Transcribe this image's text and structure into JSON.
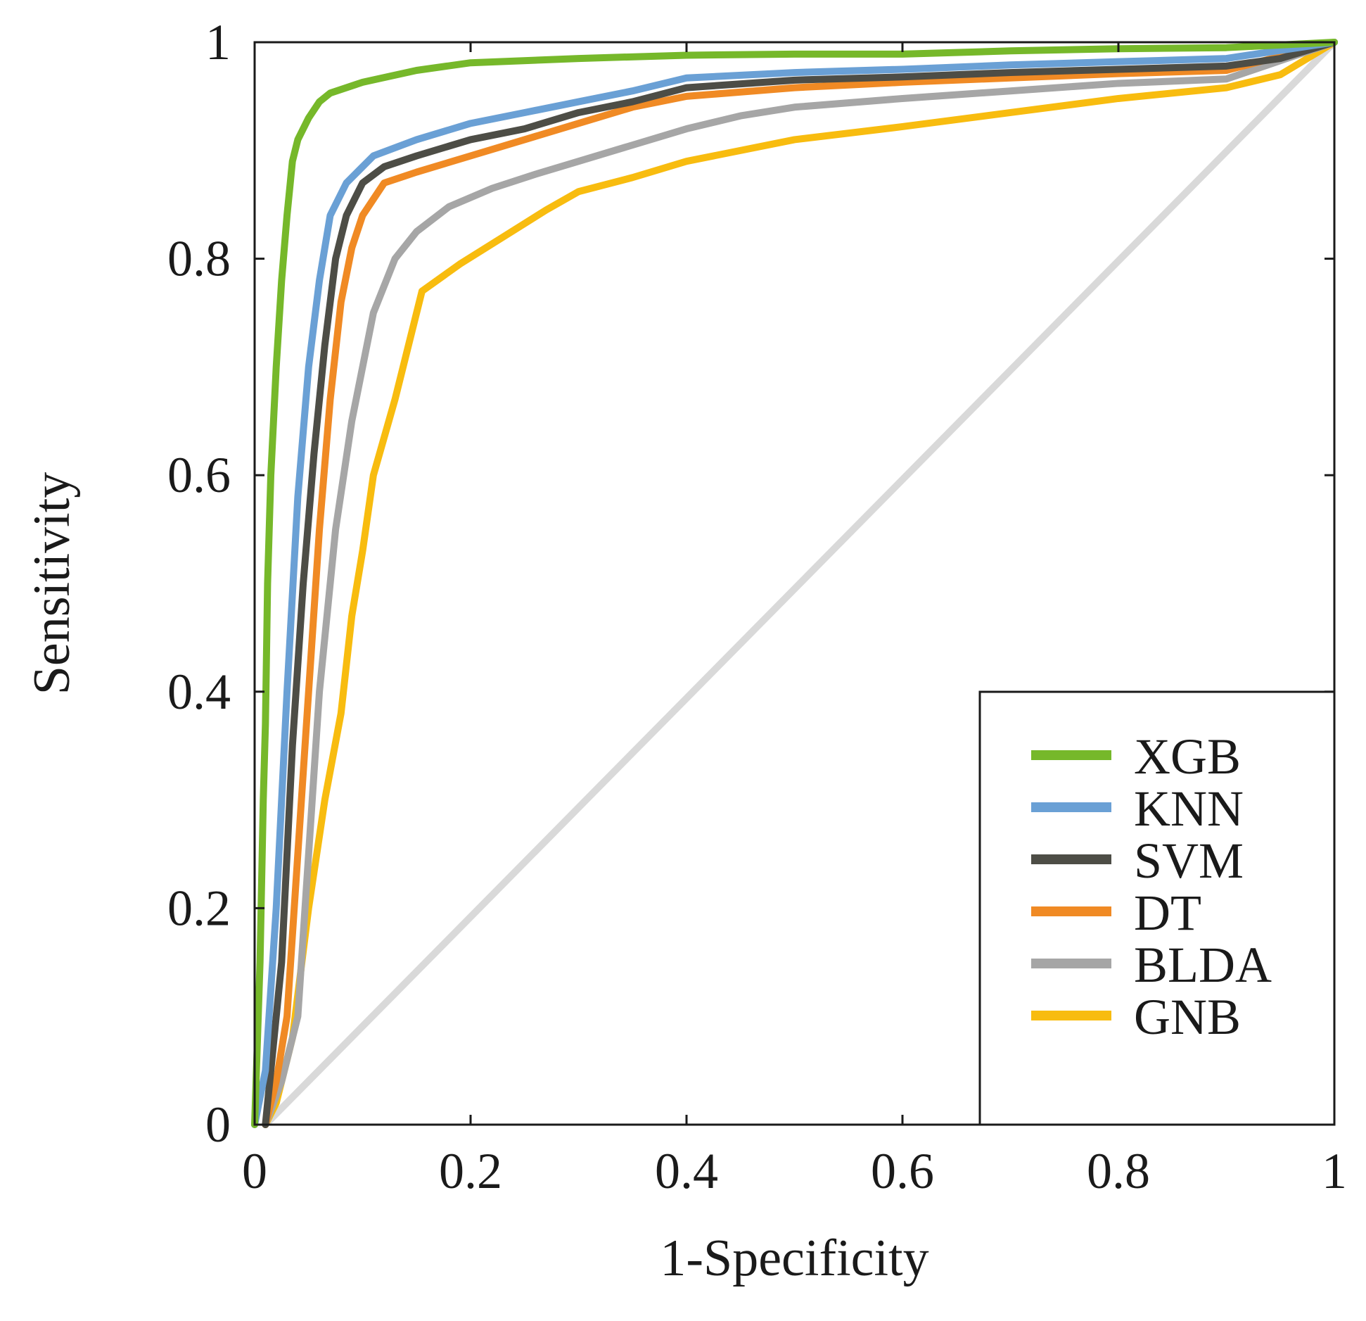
{
  "chart_data": {
    "type": "line",
    "title": "",
    "xlabel": "1-Specificity",
    "ylabel": "Sensitivity",
    "xlim": [
      0,
      1
    ],
    "ylim": [
      0,
      1
    ],
    "x_ticks": [
      0,
      0.2,
      0.4,
      0.6,
      0.8,
      1
    ],
    "y_ticks": [
      0,
      0.2,
      0.4,
      0.6,
      0.8,
      1
    ],
    "x_tick_labels": [
      "0",
      "0.2",
      "0.4",
      "0.6",
      "0.8",
      "1"
    ],
    "y_tick_labels": [
      "0",
      "0.2",
      "0.4",
      "0.6",
      "0.8",
      "1"
    ],
    "grid": false,
    "legend_position": "bottom-right",
    "reference_line": {
      "name": "chance",
      "color": "#d9d9d9",
      "points": [
        [
          0.01,
          0
        ],
        [
          1,
          1
        ]
      ]
    },
    "series": [
      {
        "name": "XGB",
        "color": "#76b82a",
        "points": [
          [
            0,
            0
          ],
          [
            0.005,
            0.15
          ],
          [
            0.008,
            0.3
          ],
          [
            0.01,
            0.37
          ],
          [
            0.012,
            0.5
          ],
          [
            0.015,
            0.6
          ],
          [
            0.02,
            0.7
          ],
          [
            0.025,
            0.78
          ],
          [
            0.03,
            0.84
          ],
          [
            0.035,
            0.89
          ],
          [
            0.04,
            0.91
          ],
          [
            0.05,
            0.93
          ],
          [
            0.06,
            0.945
          ],
          [
            0.07,
            0.953
          ],
          [
            0.1,
            0.963
          ],
          [
            0.15,
            0.974
          ],
          [
            0.2,
            0.981
          ],
          [
            0.3,
            0.985
          ],
          [
            0.4,
            0.988
          ],
          [
            0.5,
            0.989
          ],
          [
            0.6,
            0.989
          ],
          [
            0.7,
            0.992
          ],
          [
            0.8,
            0.994
          ],
          [
            0.9,
            0.995
          ],
          [
            1,
            1
          ]
        ]
      },
      {
        "name": "KNN",
        "color": "#6aa0d5",
        "points": [
          [
            0,
            0
          ],
          [
            0.01,
            0.05
          ],
          [
            0.02,
            0.2
          ],
          [
            0.03,
            0.4
          ],
          [
            0.04,
            0.58
          ],
          [
            0.05,
            0.7
          ],
          [
            0.06,
            0.78
          ],
          [
            0.07,
            0.84
          ],
          [
            0.085,
            0.87
          ],
          [
            0.11,
            0.895
          ],
          [
            0.15,
            0.91
          ],
          [
            0.2,
            0.925
          ],
          [
            0.25,
            0.935
          ],
          [
            0.3,
            0.945
          ],
          [
            0.35,
            0.955
          ],
          [
            0.4,
            0.967
          ],
          [
            0.5,
            0.972
          ],
          [
            0.6,
            0.975
          ],
          [
            0.7,
            0.979
          ],
          [
            0.8,
            0.982
          ],
          [
            0.9,
            0.985
          ],
          [
            1,
            1
          ]
        ]
      },
      {
        "name": "SVM",
        "color": "#4d4d46",
        "points": [
          [
            0.01,
            0
          ],
          [
            0.015,
            0.05
          ],
          [
            0.025,
            0.15
          ],
          [
            0.035,
            0.35
          ],
          [
            0.045,
            0.5
          ],
          [
            0.055,
            0.62
          ],
          [
            0.065,
            0.72
          ],
          [
            0.075,
            0.8
          ],
          [
            0.085,
            0.84
          ],
          [
            0.1,
            0.87
          ],
          [
            0.12,
            0.885
          ],
          [
            0.15,
            0.895
          ],
          [
            0.2,
            0.91
          ],
          [
            0.25,
            0.92
          ],
          [
            0.3,
            0.935
          ],
          [
            0.35,
            0.945
          ],
          [
            0.4,
            0.958
          ],
          [
            0.5,
            0.965
          ],
          [
            0.6,
            0.968
          ],
          [
            0.7,
            0.972
          ],
          [
            0.8,
            0.975
          ],
          [
            0.9,
            0.978
          ],
          [
            0.95,
            0.985
          ],
          [
            1,
            1
          ]
        ]
      },
      {
        "name": "DT",
        "color": "#f08a24",
        "points": [
          [
            0.01,
            0
          ],
          [
            0.02,
            0.04
          ],
          [
            0.03,
            0.1
          ],
          [
            0.04,
            0.25
          ],
          [
            0.05,
            0.4
          ],
          [
            0.06,
            0.55
          ],
          [
            0.07,
            0.67
          ],
          [
            0.08,
            0.76
          ],
          [
            0.09,
            0.81
          ],
          [
            0.1,
            0.84
          ],
          [
            0.12,
            0.87
          ],
          [
            0.15,
            0.88
          ],
          [
            0.2,
            0.895
          ],
          [
            0.25,
            0.91
          ],
          [
            0.3,
            0.925
          ],
          [
            0.35,
            0.94
          ],
          [
            0.4,
            0.95
          ],
          [
            0.5,
            0.958
          ],
          [
            0.6,
            0.963
          ],
          [
            0.7,
            0.967
          ],
          [
            0.8,
            0.971
          ],
          [
            0.9,
            0.974
          ],
          [
            1,
            1
          ]
        ]
      },
      {
        "name": "BLDA",
        "color": "#a6a6a6",
        "points": [
          [
            0.01,
            0
          ],
          [
            0.025,
            0.04
          ],
          [
            0.04,
            0.1
          ],
          [
            0.05,
            0.25
          ],
          [
            0.06,
            0.4
          ],
          [
            0.075,
            0.55
          ],
          [
            0.09,
            0.65
          ],
          [
            0.11,
            0.75
          ],
          [
            0.13,
            0.8
          ],
          [
            0.15,
            0.825
          ],
          [
            0.18,
            0.848
          ],
          [
            0.22,
            0.865
          ],
          [
            0.26,
            0.878
          ],
          [
            0.3,
            0.89
          ],
          [
            0.35,
            0.905
          ],
          [
            0.4,
            0.92
          ],
          [
            0.45,
            0.932
          ],
          [
            0.5,
            0.94
          ],
          [
            0.6,
            0.948
          ],
          [
            0.7,
            0.955
          ],
          [
            0.8,
            0.962
          ],
          [
            0.9,
            0.966
          ],
          [
            1,
            1
          ]
        ]
      },
      {
        "name": "GNB",
        "color": "#f8bc0f",
        "points": [
          [
            0.01,
            0
          ],
          [
            0.02,
            0.02
          ],
          [
            0.035,
            0.08
          ],
          [
            0.05,
            0.2
          ],
          [
            0.065,
            0.3
          ],
          [
            0.08,
            0.38
          ],
          [
            0.09,
            0.47
          ],
          [
            0.1,
            0.53
          ],
          [
            0.11,
            0.6
          ],
          [
            0.13,
            0.67
          ],
          [
            0.155,
            0.77
          ],
          [
            0.19,
            0.795
          ],
          [
            0.23,
            0.82
          ],
          [
            0.27,
            0.845
          ],
          [
            0.3,
            0.862
          ],
          [
            0.35,
            0.875
          ],
          [
            0.4,
            0.89
          ],
          [
            0.5,
            0.91
          ],
          [
            0.6,
            0.922
          ],
          [
            0.7,
            0.935
          ],
          [
            0.8,
            0.948
          ],
          [
            0.9,
            0.958
          ],
          [
            0.95,
            0.97
          ],
          [
            1,
            1
          ]
        ]
      }
    ]
  }
}
